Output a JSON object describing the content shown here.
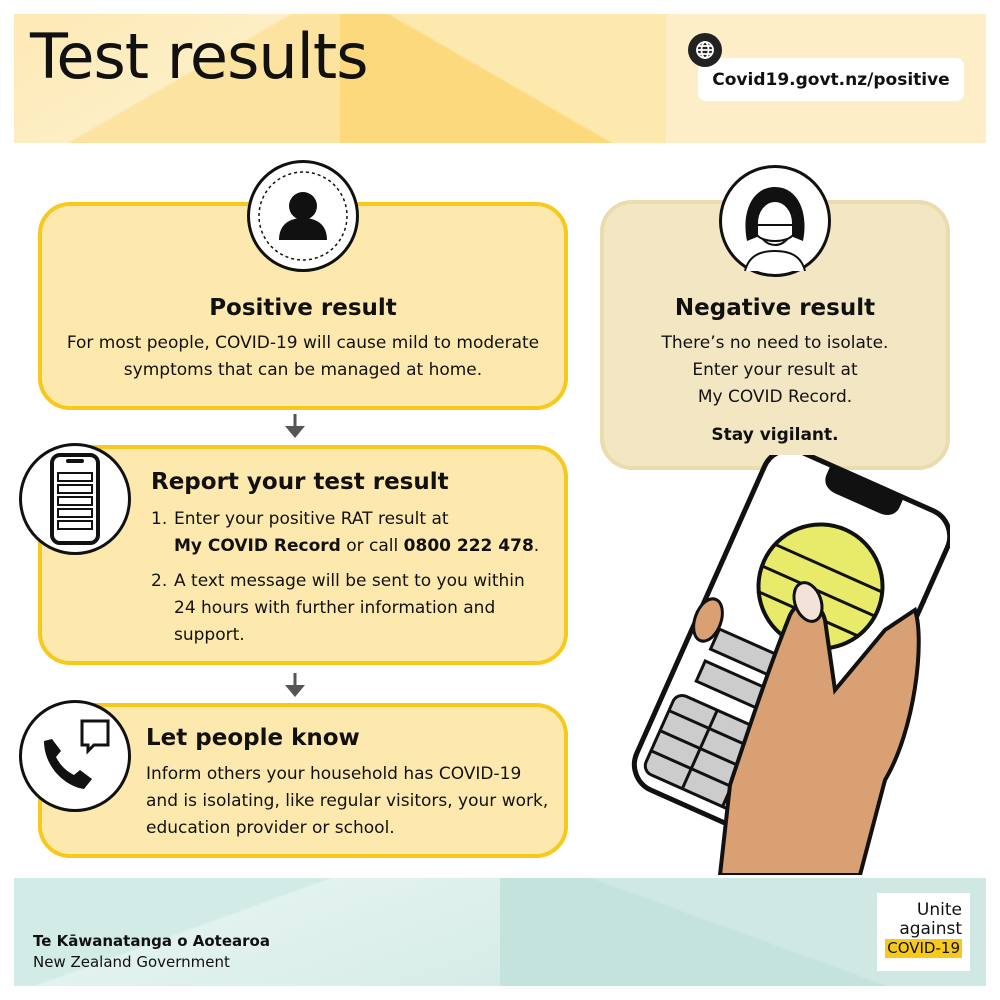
{
  "header": {
    "title": "Test results",
    "url": "Covid19.govt.nz/positive",
    "icon": "globe-icon"
  },
  "positive": {
    "title": "Positive result",
    "text": "For most people, COVID-19 will cause mild to moderate symptoms that can be managed at home.",
    "icon": "person-icon"
  },
  "report": {
    "title": "Report your test result",
    "items": [
      {
        "num": "1.",
        "pre": "Enter your positive RAT result at",
        "bold1": "My COVID Record",
        "mid": " or call ",
        "bold2": "0800 222 478",
        "post": "."
      },
      {
        "num": "2.",
        "text": "A text message will be sent to you within 24 hours with further information and support."
      }
    ],
    "icon": "phone-screen-icon"
  },
  "tell": {
    "title": "Let people know",
    "text": "Inform others your household has COVID-19 and is isolating, like regular visitors, your work, education provider or school.",
    "icon": "phone-call-icon"
  },
  "negative": {
    "title": "Negative result",
    "line1": "There’s no need to isolate.",
    "line2": "Enter your result at",
    "line3": "My COVID Record.",
    "emphasis": "Stay vigilant.",
    "icon": "masked-person-icon"
  },
  "footer": {
    "gov_maori": "Te Kāwanatanga o Aotearoa",
    "gov_english": "New Zealand Government",
    "logo_line1": "Unite",
    "logo_line2": "against",
    "logo_line3": "COVID-19"
  },
  "colors": {
    "accent": "#f7c91c",
    "box_fill": "#fde9ad",
    "negative_fill": "#f2e6c3",
    "footer": "#cfe8e2",
    "skin": "#d9a074"
  }
}
